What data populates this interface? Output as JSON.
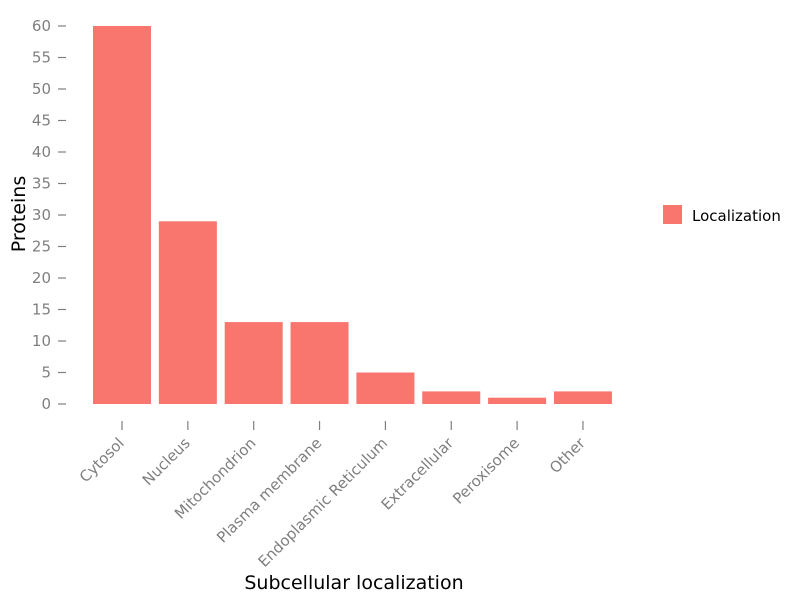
{
  "chart_data": {
    "type": "bar",
    "categories": [
      "Cytosol",
      "Nucleus",
      "Mitochondrion",
      "Plasma membrane",
      "Endoplasmic Reticulum",
      "Extracellular",
      "Peroxisome",
      "Other"
    ],
    "series": [
      {
        "name": "Localization",
        "values": [
          60,
          29,
          13,
          13,
          5,
          2,
          1,
          2
        ]
      }
    ],
    "xlabel": "Subcellular localization",
    "ylabel": "Proteins",
    "ylim": [
      0,
      60
    ],
    "yticks": [
      0,
      5,
      10,
      15,
      20,
      25,
      30,
      35,
      40,
      45,
      50,
      55,
      60
    ],
    "grid": false,
    "legend_position": "right",
    "bar_color": "#F8766D"
  }
}
